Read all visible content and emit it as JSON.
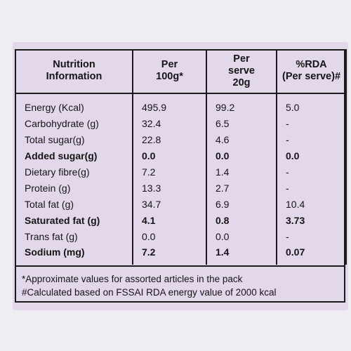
{
  "header": {
    "col1": "Nutrition\nInformation",
    "col2": "Per\n100g*",
    "col3": "Per\nserve\n20g",
    "col4": "%RDA\n(Per serve)#"
  },
  "rows": [
    {
      "name": "Energy (Kcal)",
      "per100": "495.9",
      "perServe": "99.2",
      "rda": "5.0",
      "bold": false
    },
    {
      "name": "Carbohydrate (g)",
      "per100": "32.4",
      "perServe": "6.5",
      "rda": "-",
      "bold": false
    },
    {
      "name": "Total sugar(g)",
      "per100": "22.8",
      "perServe": "4.6",
      "rda": "-",
      "bold": false
    },
    {
      "name": "Added sugar(g)",
      "per100": "0.0",
      "perServe": "0.0",
      "rda": "0.0",
      "bold": true
    },
    {
      "name": "Dietary fibre(g)",
      "per100": "7.2",
      "perServe": "1.4",
      "rda": "-",
      "bold": false
    },
    {
      "name": "Protein (g)",
      "per100": "13.3",
      "perServe": "2.7",
      "rda": "-",
      "bold": false
    },
    {
      "name": "Total fat (g)",
      "per100": "34.7",
      "perServe": "6.9",
      "rda": "10.4",
      "bold": false
    },
    {
      "name": "Saturated fat (g)",
      "per100": "4.1",
      "perServe": "0.8",
      "rda": "3.73",
      "bold": true
    },
    {
      "name": "Trans fat (g)",
      "per100": "0.0",
      "perServe": "0.0",
      "rda": "-",
      "bold": false
    },
    {
      "name": "Sodium (mg)",
      "per100": "7.2",
      "perServe": "1.4",
      "rda": "0.07",
      "bold": true
    }
  ],
  "footnotes": [
    "*Approximate values for assorted articles in the pack",
    "#Calculated based on FSSAI RDA energy value of 2000 kcal"
  ]
}
